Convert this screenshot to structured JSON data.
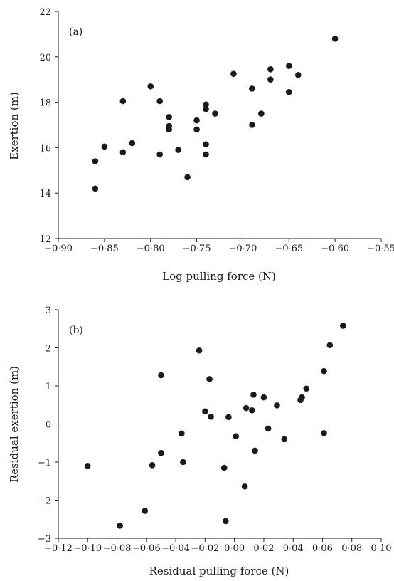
{
  "chart_data": [
    {
      "type": "scatter",
      "tag": "(a)",
      "xlabel": "Log pulling force (N)",
      "ylabel": "Exertion (m)",
      "xlim": [
        -0.9,
        -0.55
      ],
      "ylim": [
        12,
        22
      ],
      "x_ticks": [
        -0.9,
        -0.85,
        -0.8,
        -0.75,
        -0.7,
        -0.65,
        -0.6,
        -0.55
      ],
      "x_tick_labels": [
        "−0·90",
        "−0·85",
        "−0·80",
        "−0·75",
        "−0·70",
        "−0·65",
        "−0·60",
        "−0·55"
      ],
      "y_ticks": [
        12,
        14,
        16,
        18,
        20,
        22
      ],
      "y_tick_labels": [
        "12",
        "14",
        "16",
        "18",
        "20",
        "22"
      ],
      "grid": false,
      "points": [
        [
          -0.86,
          15.4
        ],
        [
          -0.86,
          14.2
        ],
        [
          -0.85,
          16.05
        ],
        [
          -0.83,
          18.05
        ],
        [
          -0.83,
          15.8
        ],
        [
          -0.82,
          16.2
        ],
        [
          -0.8,
          18.7
        ],
        [
          -0.79,
          18.05
        ],
        [
          -0.79,
          15.7
        ],
        [
          -0.78,
          17.35
        ],
        [
          -0.78,
          16.95
        ],
        [
          -0.78,
          16.8
        ],
        [
          -0.77,
          15.9
        ],
        [
          -0.76,
          14.7
        ],
        [
          -0.75,
          17.2
        ],
        [
          -0.75,
          16.8
        ],
        [
          -0.74,
          17.9
        ],
        [
          -0.74,
          17.7
        ],
        [
          -0.74,
          16.15
        ],
        [
          -0.74,
          15.7
        ],
        [
          -0.73,
          17.5
        ],
        [
          -0.71,
          19.25
        ],
        [
          -0.69,
          18.6
        ],
        [
          -0.69,
          17.0
        ],
        [
          -0.68,
          17.5
        ],
        [
          -0.67,
          19.45
        ],
        [
          -0.67,
          19.0
        ],
        [
          -0.65,
          19.6
        ],
        [
          -0.65,
          18.45
        ],
        [
          -0.64,
          19.2
        ],
        [
          -0.6,
          20.8
        ]
      ]
    },
    {
      "type": "scatter",
      "tag": "(b)",
      "xlabel": "Residual pulling force (N)",
      "ylabel": "Residual exertion (m)",
      "xlim": [
        -0.12,
        0.1
      ],
      "ylim": [
        -3,
        3
      ],
      "x_ticks": [
        -0.12,
        -0.1,
        -0.08,
        -0.06,
        -0.04,
        -0.02,
        0.0,
        0.02,
        0.04,
        0.06,
        0.08,
        0.1
      ],
      "x_tick_labels": [
        "−0·12",
        "−0·10",
        "−0·08",
        "−0·06",
        "−0·04",
        "−0·02",
        "0·00",
        "0·02",
        "0·04",
        "0·06",
        "0·08",
        "0·10"
      ],
      "y_ticks": [
        -3,
        -2,
        -1,
        0,
        1,
        2,
        3
      ],
      "y_tick_labels": [
        "−3",
        "−2",
        "−1",
        "0",
        "1",
        "2",
        "3"
      ],
      "grid": false,
      "points": [
        [
          -0.1,
          -1.1
        ],
        [
          -0.078,
          -2.67
        ],
        [
          -0.061,
          -2.28
        ],
        [
          -0.056,
          -1.08
        ],
        [
          -0.05,
          1.28
        ],
        [
          -0.05,
          -0.76
        ],
        [
          -0.036,
          -0.25
        ],
        [
          -0.035,
          -1.0
        ],
        [
          -0.024,
          1.93
        ],
        [
          -0.02,
          0.33
        ],
        [
          -0.017,
          1.18
        ],
        [
          -0.016,
          0.19
        ],
        [
          -0.007,
          -1.15
        ],
        [
          -0.006,
          -2.55
        ],
        [
          -0.004,
          0.18
        ],
        [
          0.001,
          -0.32
        ],
        [
          0.007,
          -1.64
        ],
        [
          0.008,
          0.42
        ],
        [
          0.012,
          0.36
        ],
        [
          0.013,
          0.77
        ],
        [
          0.014,
          -0.7
        ],
        [
          0.02,
          0.7
        ],
        [
          0.023,
          -0.12
        ],
        [
          0.029,
          0.49
        ],
        [
          0.034,
          -0.4
        ],
        [
          0.045,
          0.63
        ],
        [
          0.046,
          0.7
        ],
        [
          0.049,
          0.93
        ],
        [
          0.061,
          1.39
        ],
        [
          0.061,
          -0.24
        ],
        [
          0.065,
          2.07
        ],
        [
          0.074,
          2.58
        ]
      ]
    }
  ]
}
